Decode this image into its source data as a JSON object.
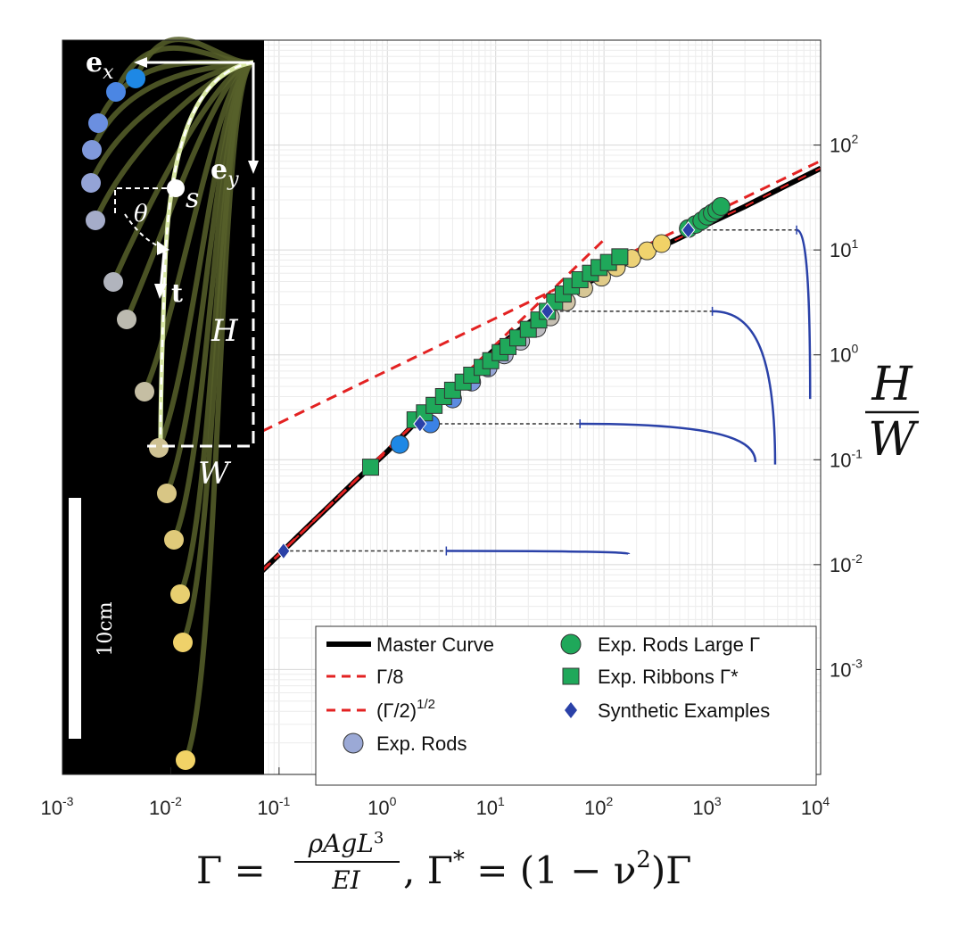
{
  "chart_data": {
    "type": "scatter",
    "x_scale": "log",
    "y_scale": "log",
    "xlim": [
      0.001,
      10000
    ],
    "ylim": [
      0.0001,
      1000
    ],
    "grid": true,
    "legend_position": "bottom-right",
    "x_ticks": [
      {
        "value": 0.001,
        "base": "10",
        "exp": "-3"
      },
      {
        "value": 0.01,
        "base": "10",
        "exp": "-2"
      },
      {
        "value": 0.1,
        "base": "10",
        "exp": "-1"
      },
      {
        "value": 1,
        "base": "10",
        "exp": "0"
      },
      {
        "value": 10,
        "base": "10",
        "exp": "1"
      },
      {
        "value": 100,
        "base": "10",
        "exp": "2"
      },
      {
        "value": 1000,
        "base": "10",
        "exp": "3"
      },
      {
        "value": 10000,
        "base": "10",
        "exp": "4"
      }
    ],
    "y_ticks": [
      {
        "value": 0.001,
        "base": "10",
        "exp": "-3"
      },
      {
        "value": 0.01,
        "base": "10",
        "exp": "-2"
      },
      {
        "value": 0.1,
        "base": "10",
        "exp": "-1"
      },
      {
        "value": 1,
        "base": "10",
        "exp": "0"
      },
      {
        "value": 10,
        "base": "10",
        "exp": "1"
      },
      {
        "value": 100,
        "base": "10",
        "exp": "2"
      }
    ],
    "xlabel": {
      "gamma": "Γ",
      "eq": " = ",
      "num": "ρAgL",
      "num_exp": "3",
      "den": "EI",
      "sep": ", ",
      "gamma_star": "Γ",
      "star": "*",
      "eq2": " = (1 − ν",
      "nu_exp": "2",
      "close": ")Γ"
    },
    "ylabel": {
      "num": "H",
      "den": "W"
    },
    "legend": [
      {
        "label": "Master Curve",
        "marker": "line",
        "color": "#000000"
      },
      {
        "label": "Γ/8",
        "marker": "dashed",
        "color": "#e32222"
      },
      {
        "label": "(Γ/2)",
        "label_exp": "1/2",
        "marker": "dashed",
        "color": "#e32222"
      },
      {
        "label": "Exp. Rods",
        "marker": "circle",
        "color": "#9ba9d6"
      },
      {
        "label": "Exp. Rods Large Γ",
        "marker": "circle",
        "color": "#1fa85a"
      },
      {
        "label": "Exp. Ribbons Γ*",
        "marker": "square",
        "color": "#1fa85a"
      },
      {
        "label": "Synthetic Examples",
        "marker": "diamond",
        "color": "#2a41a8"
      }
    ],
    "series": [
      {
        "name": "Master Curve",
        "type": "line",
        "color": "#000000",
        "x": [
          0.04,
          0.1,
          0.2,
          0.5,
          1,
          2,
          3,
          5,
          10,
          20,
          30,
          50,
          100,
          200,
          500,
          1000,
          2000,
          5000,
          10000
        ],
        "y": [
          0.005,
          0.0125,
          0.025,
          0.062,
          0.12,
          0.25,
          0.37,
          0.6,
          1.15,
          2.0,
          2.7,
          4.0,
          5.9,
          8.3,
          13.0,
          18.5,
          26.0,
          42.0,
          60.0
        ]
      },
      {
        "name": "Γ/8",
        "type": "dashed",
        "color": "#e32222",
        "x": [
          0.04,
          100
        ],
        "y": [
          0.005,
          12.5
        ]
      },
      {
        "name": "(Γ/2)^1/2",
        "type": "dashed",
        "color": "#e32222",
        "x": [
          0.05,
          10000
        ],
        "y": [
          0.158,
          70.7
        ]
      },
      {
        "name": "Exp. Rods",
        "type": "circle",
        "x": [
          1.3,
          2.5,
          4,
          6,
          8.5,
          12,
          17,
          24,
          32,
          45,
          65,
          95,
          130,
          180,
          250,
          340
        ],
        "y": [
          0.14,
          0.22,
          0.38,
          0.55,
          0.75,
          1.0,
          1.35,
          1.8,
          2.3,
          3.2,
          4.3,
          5.5,
          6.8,
          8.3,
          9.8,
          11.5
        ],
        "colors": [
          "#1e88e5",
          "#3b82e6",
          "#5b8be0",
          "#7b97dc",
          "#96a6d6",
          "#a8b0cf",
          "#b4b7c7",
          "#bcbbbf",
          "#c5bfb2",
          "#cfc3a5",
          "#d7c795",
          "#e0cb88",
          "#e7cf7f",
          "#edd277",
          "#f0d36e",
          "#f1d267"
        ]
      },
      {
        "name": "Exp. Rods Large Γ",
        "type": "circle",
        "color": "#1fa85a",
        "x": [
          600,
          700,
          800,
          900,
          1000,
          1100,
          1200
        ],
        "y": [
          16,
          17.5,
          19,
          21,
          22.5,
          24,
          26
        ]
      },
      {
        "name": "Exp. Ribbons Γ*",
        "type": "square",
        "color": "#1fa85a",
        "x": [
          0.7,
          1.8,
          2.2,
          2.7,
          3.3,
          4,
          5,
          6,
          7.5,
          9,
          11,
          13,
          16,
          20,
          25,
          30,
          35,
          42,
          50,
          60,
          75,
          90,
          110,
          140
        ],
        "y": [
          0.085,
          0.24,
          0.28,
          0.33,
          0.4,
          0.46,
          0.55,
          0.64,
          0.76,
          0.88,
          1.05,
          1.2,
          1.45,
          1.75,
          2.15,
          2.6,
          3.2,
          3.8,
          4.5,
          5.2,
          6.0,
          6.8,
          7.6,
          8.6
        ]
      },
      {
        "name": "Synthetic Examples",
        "type": "diamond",
        "color": "#2a41a8",
        "x": [
          0.11,
          2.0,
          30,
          600
        ],
        "y": [
          0.0135,
          0.22,
          2.6,
          15.5
        ]
      }
    ],
    "insets": [
      {
        "synthetic_index": 0,
        "start_x": 3.5,
        "end_x": 170,
        "end_y": 0.0126
      },
      {
        "synthetic_index": 1,
        "start_x": 60,
        "end_x": 2500,
        "end_y": 0.095
      },
      {
        "synthetic_index": 2,
        "start_x": 1000,
        "end_x": 3800,
        "end_y": 0.09
      },
      {
        "synthetic_index": 3,
        "start_x": 6000,
        "end_x": 8000,
        "end_y": 0.38
      }
    ]
  },
  "photo": {
    "labels": {
      "ex_bold": "e",
      "ex_sub": "x",
      "ey_bold": "e",
      "ey_sub": "y",
      "s": "s",
      "theta": "θ",
      "t": "t",
      "H": "H",
      "W": "W"
    },
    "scale_bar_label": "10cm",
    "bead_colors": [
      "#1e88e5",
      "#4b86e3",
      "#6b8fe0",
      "#8099db",
      "#94a3d6",
      "#a5acc9",
      "#b1b4bd",
      "#bcbab0",
      "#c5bea3",
      "#cfc293",
      "#d8c685",
      "#e0ca7a",
      "#e8cf70",
      "#efd16a",
      "#f2d366"
    ]
  }
}
